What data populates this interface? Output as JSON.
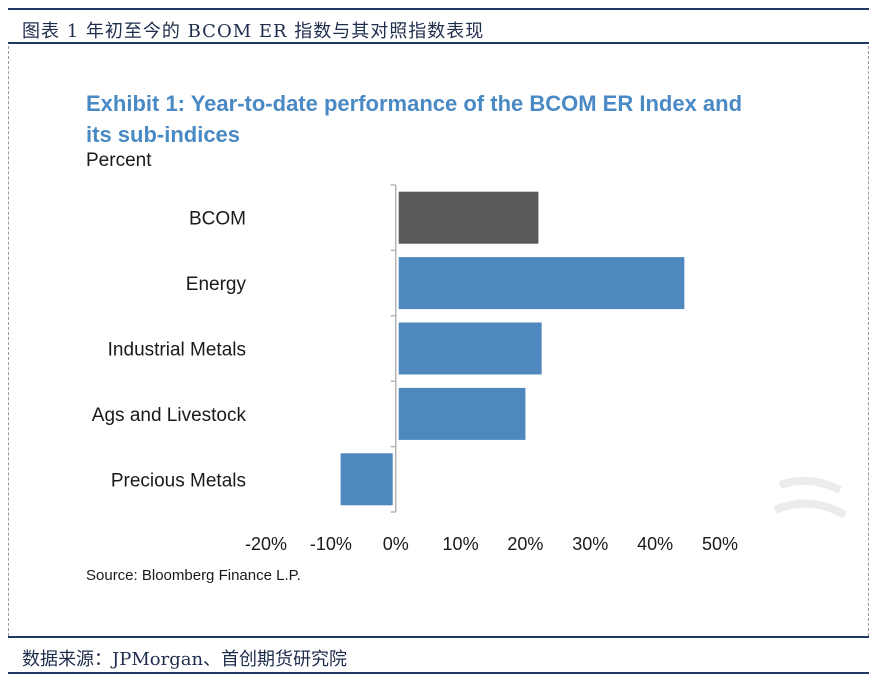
{
  "caption": {
    "title": "图表 1 年初至今的 BCOM ER 指数与其对照指数表现",
    "source": "数据来源：JPMorgan、首创期货研究院"
  },
  "chart_data": {
    "type": "bar",
    "orientation": "horizontal",
    "title": "Exhibit 1: Year-to-date performance of the BCOM ER Index and its sub-indices",
    "unit_label": "Percent",
    "source": "Source: Bloomberg Finance L.P.",
    "categories": [
      "BCOM",
      "Energy",
      "Industrial Metals",
      "Ags and Livestock",
      "Precious Metals"
    ],
    "values": [
      22,
      44.5,
      22.5,
      20,
      -8.5
    ],
    "bar_colors": [
      "#58595b",
      "#4e88be",
      "#4e88be",
      "#4e88be",
      "#4e88be"
    ],
    "xlim": [
      -20,
      50
    ],
    "xticks": [
      "-20%",
      "-10%",
      "0%",
      "10%",
      "20%",
      "30%",
      "40%",
      "50%"
    ],
    "tick_values": [
      -20,
      -10,
      0,
      10,
      20,
      30,
      40,
      50
    ],
    "grid": false
  }
}
